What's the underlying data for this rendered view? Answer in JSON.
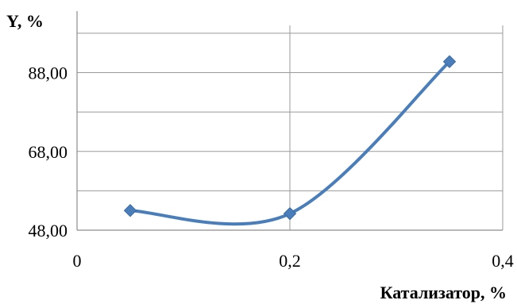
{
  "chart_data": {
    "type": "line",
    "smooth": true,
    "ylabel": "Y, %",
    "xlabel": "Катализатор, %",
    "x_ticks": [
      {
        "value": 0,
        "label": "0"
      },
      {
        "value": 0.2,
        "label": "0,2"
      },
      {
        "value": 0.4,
        "label": "0,4"
      }
    ],
    "y_ticks": [
      {
        "value": 48,
        "label": "48,00"
      },
      {
        "value": 68,
        "label": "68,00"
      },
      {
        "value": 88,
        "label": "88,00"
      }
    ],
    "xlim": [
      0,
      0.4
    ],
    "ylim": [
      48,
      100
    ],
    "grid": true,
    "series": [
      {
        "color": "#4a7ebb",
        "x": [
          0.05,
          0.2,
          0.35
        ],
        "y": [
          53.0,
          52.2,
          90.8
        ]
      }
    ]
  }
}
